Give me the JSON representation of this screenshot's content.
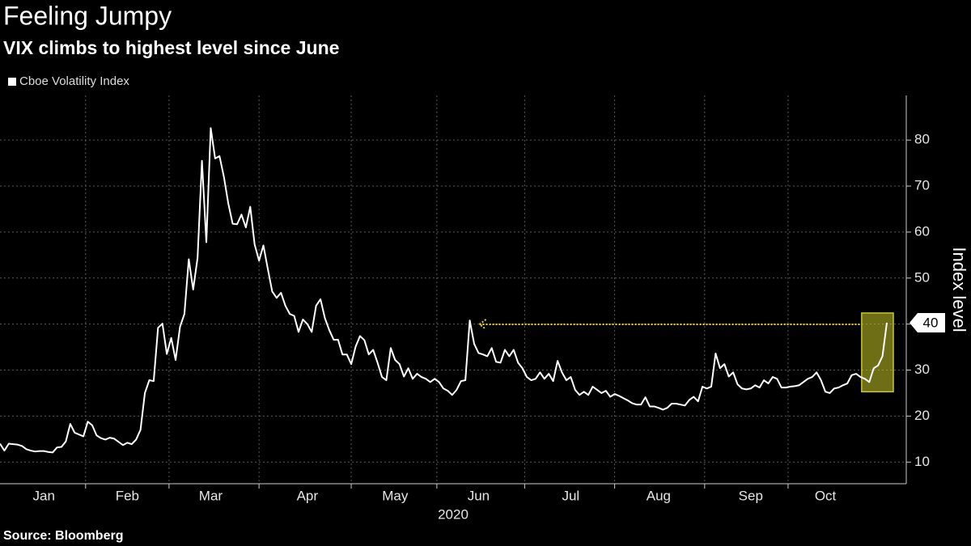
{
  "chart_data": {
    "type": "line",
    "title": "Feeling Jumpy",
    "subtitle": "VIX climbs to highest level since June",
    "ylabel": "Index level",
    "xlabel": "2020",
    "source": "Source: Bloomberg",
    "end_label": "40",
    "ylim": [
      5.3,
      89.7
    ],
    "yticks": [
      10,
      20,
      30,
      40,
      50,
      60,
      70,
      80
    ],
    "grid": true,
    "legend": "top-left",
    "highlight_color": "#c8c82a",
    "categories": [
      null,
      null,
      null,
      null,
      null,
      null,
      null,
      null,
      null,
      null,
      "Jan",
      null,
      null,
      null,
      null,
      null,
      null,
      null,
      null,
      null,
      null,
      null,
      null,
      null,
      null,
      null,
      null,
      null,
      null,
      "Feb",
      null,
      null,
      null,
      null,
      null,
      null,
      null,
      null,
      null,
      null,
      null,
      null,
      null,
      null,
      null,
      null,
      null,
      null,
      "Mar",
      null,
      null,
      null,
      null,
      null,
      null,
      null,
      null,
      null,
      null,
      null,
      null,
      null,
      null,
      null,
      null,
      null,
      null,
      null,
      null,
      null,
      "Apr",
      null,
      null,
      null,
      null,
      null,
      null,
      null,
      null,
      null,
      null,
      null,
      null,
      null,
      null,
      null,
      null,
      null,
      null,
      null,
      "May",
      null,
      null,
      null,
      null,
      null,
      null,
      null,
      null,
      null,
      null,
      null,
      null,
      null,
      null,
      null,
      null,
      null,
      null,
      "Jun",
      null,
      null,
      null,
      null,
      null,
      null,
      null,
      null,
      null,
      null,
      null,
      null,
      null,
      null,
      null,
      null,
      null,
      null,
      null,
      null,
      "Jul",
      null,
      null,
      null,
      null,
      null,
      null,
      null,
      null,
      null,
      null,
      null,
      null,
      null,
      null,
      null,
      null,
      null,
      null,
      null,
      "Aug",
      null,
      null,
      null,
      null,
      null,
      null,
      null,
      null,
      null,
      null,
      null,
      null,
      null,
      null,
      null,
      null,
      null,
      null,
      null,
      null,
      "Sep",
      null,
      null,
      null,
      null,
      null,
      null,
      null,
      null,
      null,
      null,
      null,
      null,
      null,
      null,
      null,
      null,
      "Oct",
      null,
      null,
      null,
      null,
      null,
      null,
      null,
      null,
      null,
      null,
      null,
      null,
      null,
      null
    ],
    "series": [
      {
        "name": "Cboe Volatility Index",
        "color": "#ffffff",
        "values": [
          14,
          12.5,
          14,
          13.9,
          13.8,
          13.5,
          12.8,
          12.5,
          12.3,
          12.4,
          12.4,
          12.2,
          12.1,
          13.2,
          13.3,
          14.5,
          18.3,
          16.4,
          16,
          15.6,
          18.8,
          18,
          15.8,
          15.2,
          14.9,
          15.3,
          15.1,
          14.4,
          13.7,
          14.2,
          13.9,
          14.9,
          17,
          25,
          27.8,
          27.6,
          39.2,
          40.1,
          33.5,
          37,
          32.2,
          39.4,
          42.2,
          54.1,
          47.5,
          54.4,
          75.5,
          57.8,
          82.6,
          76,
          76.5,
          72,
          66.2,
          61.8,
          61.7,
          63.8,
          61,
          65.5,
          57.3,
          53.8,
          57.1,
          52,
          47.1,
          45.7,
          46.8,
          44,
          42.2,
          41.8,
          38.3,
          41,
          40,
          38.3,
          44,
          45.4,
          41.3,
          38.7,
          36.6,
          36.6,
          33.4,
          33.4,
          31.3,
          35.1,
          37.4,
          36.5,
          33.4,
          34.4,
          31.6,
          28.5,
          27.8,
          34.8,
          32.2,
          31.3,
          28.6,
          30.4,
          28.1,
          29.2,
          28.5,
          28.1,
          27.4,
          28.1,
          27.4,
          26,
          25.5,
          24.6,
          25.7,
          27.6,
          27.8,
          40.8,
          35.7,
          33.7,
          33.4,
          33,
          34.8,
          31.8,
          31.6,
          34.4,
          33,
          34.4,
          31.6,
          30.4,
          28.5,
          27.8,
          28.1,
          29.5,
          28.1,
          29.2,
          27.6,
          32,
          29.5,
          27.8,
          28.5,
          25.7,
          24.6,
          25.3,
          24.6,
          26.4,
          25.7,
          25,
          25.5,
          24.2,
          24.8,
          24.4,
          23.9,
          23.4,
          22.8,
          22.5,
          22.5,
          24.1,
          22.1,
          22.1,
          21.8,
          21.4,
          21.8,
          22.7,
          22.7,
          22.5,
          22.3,
          23.5,
          24.2,
          23.2,
          26.4,
          26,
          26.4,
          33.6,
          30.4,
          31.3,
          28.6,
          29.5,
          26.9,
          26,
          25.8,
          26,
          26.7,
          26.2,
          27.8,
          27.1,
          28.5,
          28.1,
          26.2,
          26.2,
          26.4,
          26.5,
          26.7,
          27.4,
          28.1,
          28.5,
          29.5,
          27.8,
          25.3,
          25,
          26,
          26.2,
          26.7,
          27.1,
          28.9,
          29.2,
          28.5,
          28.1,
          27.4,
          30.4,
          31,
          33,
          40.3
        ]
      }
    ]
  }
}
